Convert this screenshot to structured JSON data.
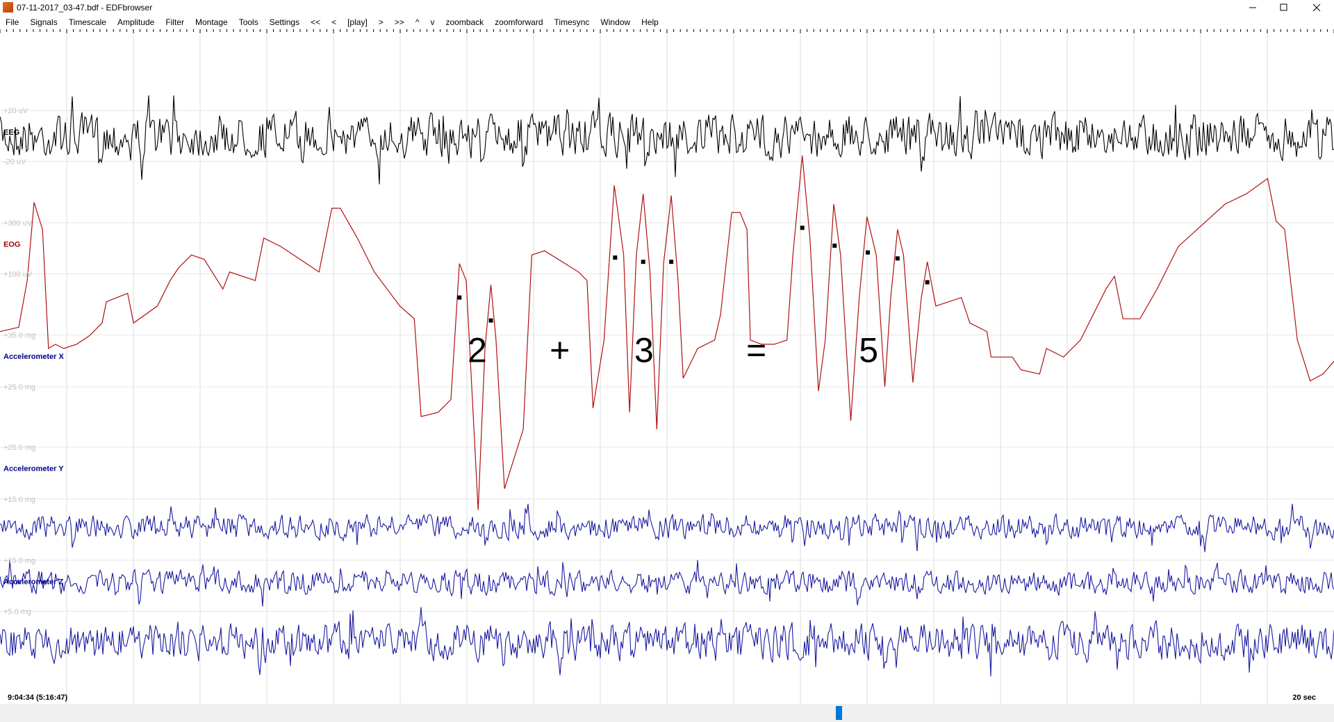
{
  "window": {
    "title": "07-11-2017_03-47.bdf - EDFbrowser"
  },
  "menu": [
    "File",
    "Signals",
    "Timescale",
    "Amplitude",
    "Filter",
    "Montage",
    "Tools",
    "Settings",
    "<<",
    "<",
    "[play]",
    ">",
    ">>",
    "^",
    "v",
    "zoomback",
    "zoomforward",
    "Timesync",
    "Window",
    "Help"
  ],
  "channels": [
    "EEG",
    "EOG",
    "Accelerometer X",
    "Accelerometer Y",
    "Accelerometer Z"
  ],
  "amplitude_labels": [
    "+20 uV",
    "-20 uV",
    "+300 uV",
    "+100 uV",
    "+35.0 mg",
    "+25.0 mg",
    "+25.0 mg",
    "+15.0 mg",
    "+15.0 mg",
    "+5.0 mg"
  ],
  "annotations": [
    "2",
    "+",
    "3",
    "=",
    "5"
  ],
  "status": {
    "time": "9:04:34 (5:16:47)",
    "timescale": "20 sec"
  }
}
